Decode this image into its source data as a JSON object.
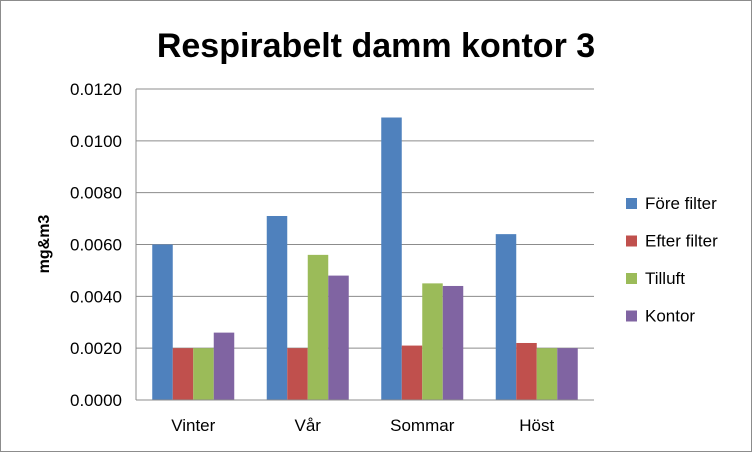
{
  "chart_data": {
    "type": "bar",
    "title": "Respirabelt damm kontor 3",
    "xlabel": "",
    "ylabel": "mg&m3",
    "ylim": [
      0,
      0.012
    ],
    "ytick_labels": [
      "0.0000",
      "0.0020",
      "0.0040",
      "0.0060",
      "0.0080",
      "0.0100",
      "0.0120"
    ],
    "yticks": [
      0,
      0.002,
      0.004,
      0.006,
      0.008,
      0.01,
      0.012
    ],
    "grid": true,
    "legend_position": "right",
    "categories": [
      "Vinter",
      "Vår",
      "Sommar",
      "Höst"
    ],
    "series": [
      {
        "name": "Före filter",
        "color": "#4F81BD",
        "values": [
          0.006,
          0.0071,
          0.0109,
          0.0064
        ]
      },
      {
        "name": "Efter filter",
        "color": "#C0504D",
        "values": [
          0.002,
          0.002,
          0.0021,
          0.0022
        ]
      },
      {
        "name": "Tilluft",
        "color": "#9BBB59",
        "values": [
          0.002,
          0.0056,
          0.0045,
          0.002
        ]
      },
      {
        "name": "Kontor",
        "color": "#8064A2",
        "values": [
          0.0026,
          0.0048,
          0.0044,
          0.002
        ]
      }
    ]
  }
}
